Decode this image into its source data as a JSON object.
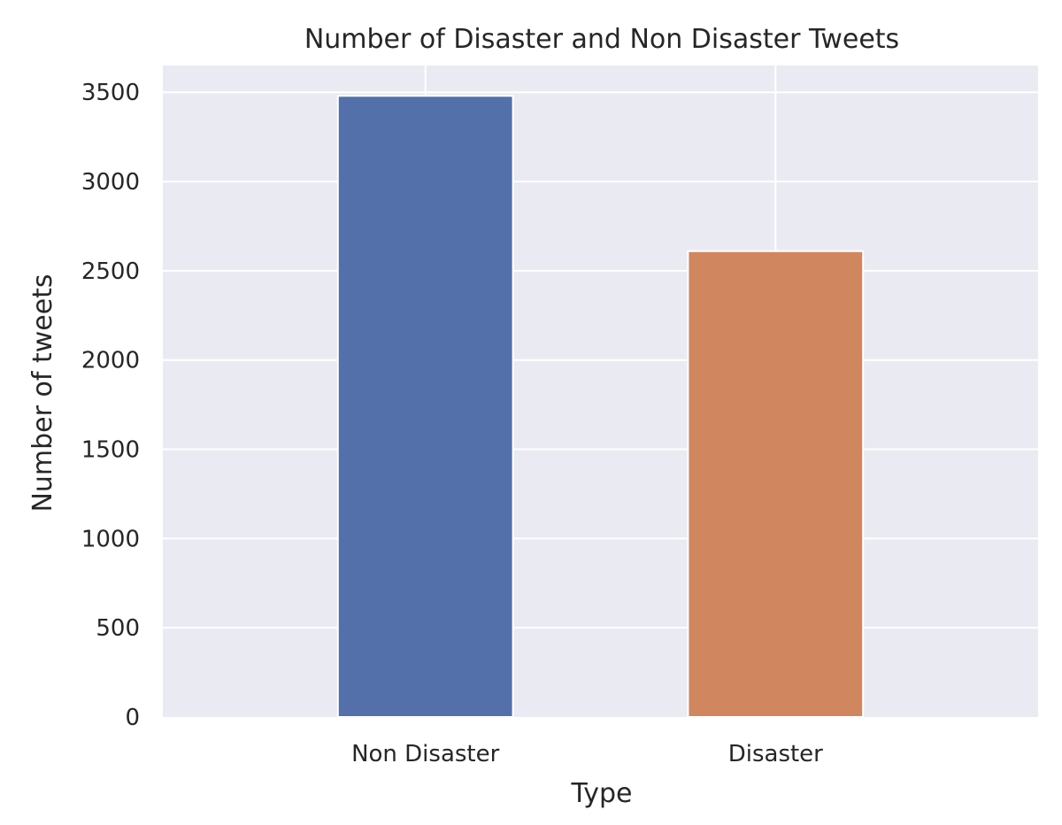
{
  "chart_data": {
    "type": "bar",
    "title": "Number of Disaster and Non Disaster Tweets",
    "xlabel": "Type",
    "ylabel": "Number of tweets",
    "categories": [
      "Non Disaster",
      "Disaster"
    ],
    "values": [
      3480,
      2610
    ],
    "colors": [
      "#5470aa",
      "#d0875f"
    ],
    "ylim": [
      0,
      3650
    ],
    "yticks": [
      0,
      500,
      1000,
      1500,
      2000,
      2500,
      3000,
      3500
    ],
    "grid": true,
    "background": "#eaeaf2",
    "grid_color": "#ffffff"
  }
}
